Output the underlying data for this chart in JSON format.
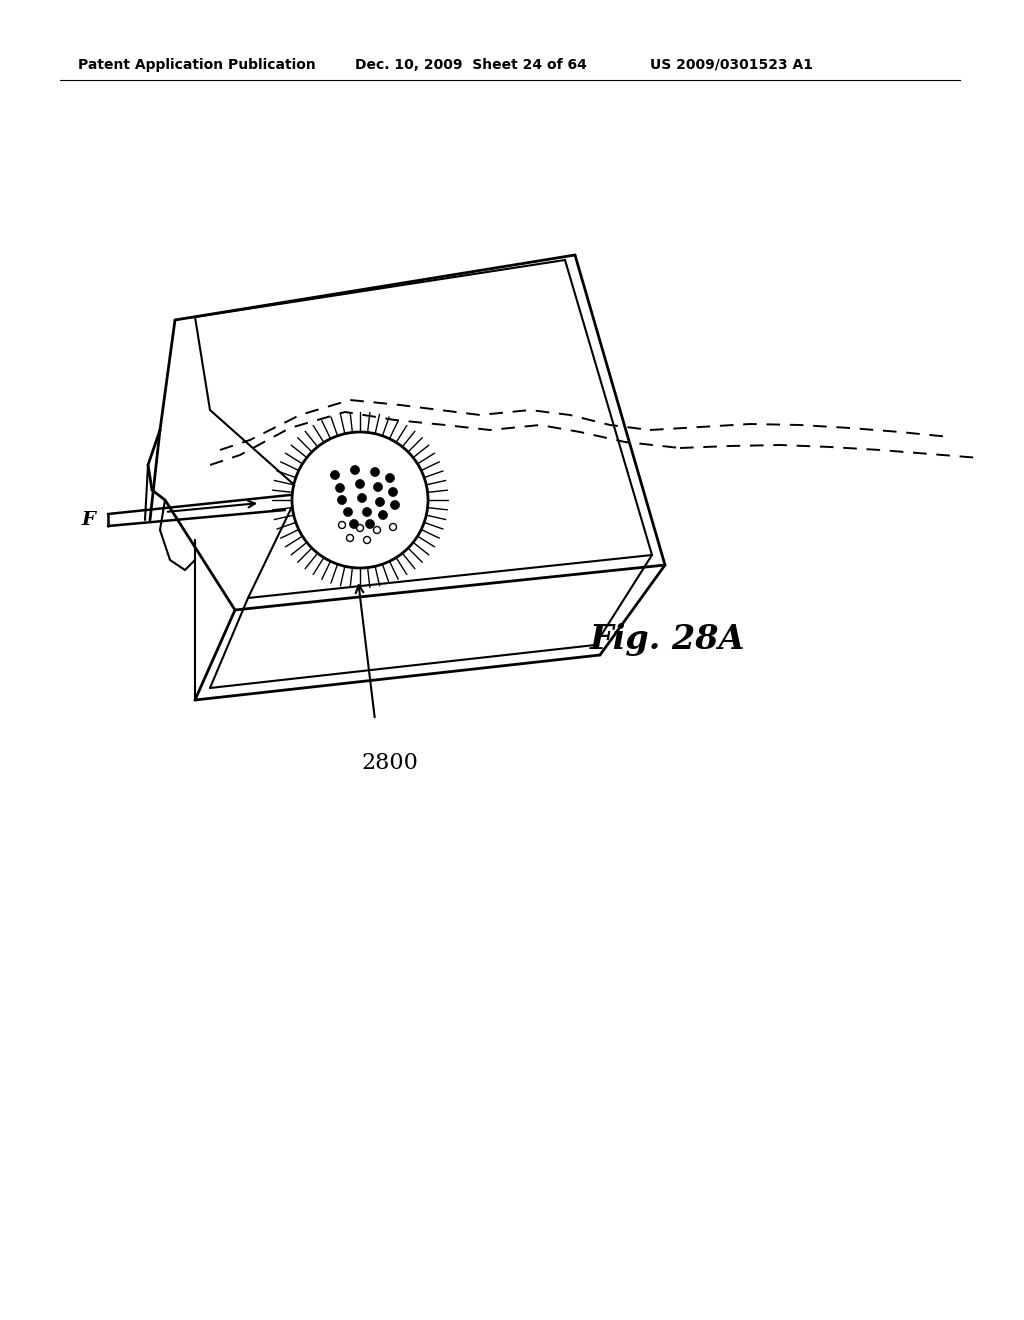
{
  "bg_color": "#ffffff",
  "header_text": "Patent Application Publication",
  "header_date": "Dec. 10, 2009  Sheet 24 of 64",
  "header_patent": "US 2009/0301523 A1",
  "fig_label": "Fig. 28A",
  "ref_number": "2800",
  "label_F": "F",
  "header_fontsize": 10,
  "fig_label_fontsize": 24,
  "ref_fontsize": 16,
  "F_fontsize": 14
}
